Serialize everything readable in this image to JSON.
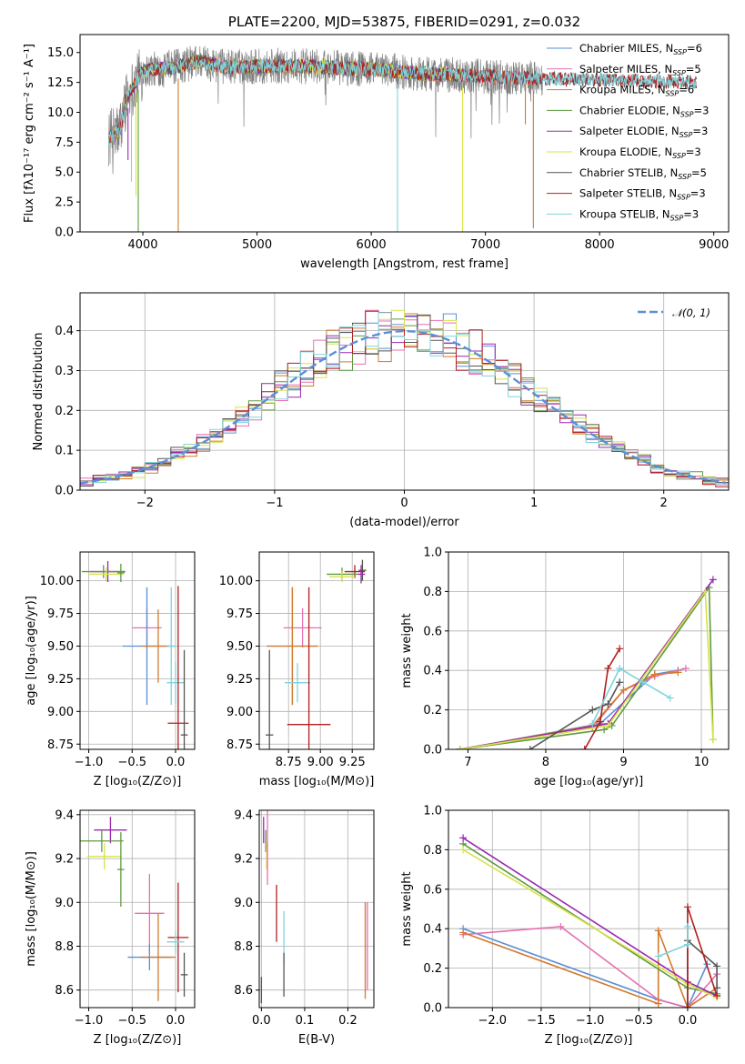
{
  "figure": {
    "title": "PLATE=2200, MJD=53875, FIBERID=0291, z=0.032"
  },
  "colors": {
    "Chabrier MILES": "#5a8fd6",
    "Salpeter MILES": "#e86fb0",
    "Kroupa MILES": "#d27a2a",
    "Chabrier ELODIE": "#5f9a3e",
    "Salpeter ELODIE": "#9b27b0",
    "Kroupa ELODIE": "#d8e24a",
    "Chabrier STELIB": "#555555",
    "Salpeter STELIB": "#b21f1f",
    "Kroupa STELIB": "#7fd3dc"
  },
  "chart_data": [
    {
      "id": "spectrum",
      "type": "line",
      "title": "PLATE=2200, MJD=53875, FIBERID=0291, z=0.032",
      "xlabel": "wavelength [Angstrom, rest frame]",
      "ylabel": "Flux [fλ10⁻¹⁷ erg cm⁻² s⁻¹ A⁻¹]",
      "xlim": [
        3450,
        9130
      ],
      "ylim": [
        0,
        16.5
      ],
      "xticks": [
        4000,
        5000,
        6000,
        7000,
        8000,
        9000
      ],
      "yticks": [
        0.0,
        2.5,
        5.0,
        7.5,
        10.0,
        12.5,
        15.0
      ],
      "grid": false,
      "legend_position": "top-right",
      "legend": [
        {
          "label": "Chabrier MILES, N",
          "sub": "SSP",
          "suffix": "=6",
          "color": "#5a8fd6"
        },
        {
          "label": "Salpeter MILES, N",
          "sub": "SSP",
          "suffix": "=5",
          "color": "#e86fb0"
        },
        {
          "label": "Kroupa MILES, N",
          "sub": "SSP",
          "suffix": "=6",
          "color": "#d27a2a"
        },
        {
          "label": "Chabrier ELODIE, N",
          "sub": "SSP",
          "suffix": "=3",
          "color": "#5f9a3e"
        },
        {
          "label": "Salpeter ELODIE, N",
          "sub": "SSP",
          "suffix": "=3",
          "color": "#9b27b0"
        },
        {
          "label": "Kroupa ELODIE, N",
          "sub": "SSP",
          "suffix": "=3",
          "color": "#d8e24a"
        },
        {
          "label": "Chabrier STELIB, N",
          "sub": "SSP",
          "suffix": "=5",
          "color": "#555555"
        },
        {
          "label": "Salpeter STELIB, N",
          "sub": "SSP",
          "suffix": "=3",
          "color": "#b21f1f"
        },
        {
          "label": "Kroupa STELIB, N",
          "sub": "SSP",
          "suffix": "=3",
          "color": "#7fd3dc"
        }
      ],
      "continuum": [
        [
          3700,
          7.8
        ],
        [
          3800,
          8.5
        ],
        [
          3850,
          11.0
        ],
        [
          3950,
          12.8
        ],
        [
          4000,
          13.4
        ],
        [
          4100,
          13.6
        ],
        [
          4300,
          13.8
        ],
        [
          4500,
          14.3
        ],
        [
          4700,
          13.8
        ],
        [
          4900,
          13.8
        ],
        [
          5200,
          13.9
        ],
        [
          5500,
          13.8
        ],
        [
          6000,
          13.6
        ],
        [
          6500,
          13.2
        ],
        [
          7000,
          13.0
        ],
        [
          7500,
          12.8
        ],
        [
          8000,
          12.7
        ],
        [
          8500,
          12.6
        ],
        [
          8850,
          12.5
        ]
      ],
      "observed": {
        "color": "#808080",
        "wavelength_range": [
          3700,
          7500
        ],
        "noise_amplitude": 1.5
      },
      "model_ranges": {
        "MILES": [
          3700,
          7420
        ],
        "ELODIE": [
          3750,
          6800
        ],
        "STELIB": [
          3700,
          8850
        ]
      },
      "dips": [
        {
          "x": 3940,
          "y": 3.0,
          "color": "#d8e24a"
        },
        {
          "x": 3900,
          "y": 4.2,
          "color": "#7fd3dc"
        },
        {
          "x": 3870,
          "y": 6.0,
          "color": "#9b27b0"
        },
        {
          "x": 3960,
          "y": 0.0,
          "color": "#5f9a3e"
        },
        {
          "x": 4310,
          "y": 0.0,
          "color": "#d27a2a"
        },
        {
          "x": 6230,
          "y": 0.0,
          "color": "#7fd3dc"
        },
        {
          "x": 6800,
          "y": 0.0,
          "color": "#d8e24a"
        },
        {
          "x": 7420,
          "y": 0.3,
          "color": "#d27a2a"
        },
        {
          "x": 7350,
          "y": 9.0,
          "color": "#d27a2a"
        }
      ]
    },
    {
      "id": "residuals",
      "type": "histogram",
      "xlabel": "(data-model)/error",
      "ylabel": "Normed distribution",
      "xlim": [
        -2.5,
        2.5
      ],
      "ylim": [
        0,
        0.495
      ],
      "xticks": [
        -2,
        -1,
        0,
        1,
        2
      ],
      "yticks": [
        0.0,
        0.1,
        0.2,
        0.3,
        0.4
      ],
      "grid": true,
      "bin_width": 0.1,
      "legend_position": "top-right",
      "gaussian": {
        "label": "𝒩(0, 1)",
        "mean": 0,
        "sigma": 1,
        "color": "#5b8fd6"
      }
    },
    {
      "id": "age-vs-Z",
      "type": "errorbar",
      "xlabel": "Z [log₁₀(Z/Z⊙)]",
      "ylabel": "age  [log₁₀(age/yr)]",
      "xlim": [
        -1.1,
        0.22
      ],
      "ylim": [
        8.71,
        10.22
      ],
      "xticks": [
        -1.0,
        -0.5,
        0.0
      ],
      "yticks": [
        8.75,
        9.0,
        9.25,
        9.5,
        9.75,
        10.0
      ],
      "grid": true,
      "points": [
        {
          "x": -0.78,
          "y": 10.07,
          "xerr": 0.2,
          "yerr": 0.08,
          "color": "#9b27b0"
        },
        {
          "x": -0.83,
          "y": 10.07,
          "xerr": 0.25,
          "yerr": 0.05,
          "color": "#5f9a3e"
        },
        {
          "x": -0.8,
          "y": 10.05,
          "xerr": 0.2,
          "yerr": 0.05,
          "color": "#d8e24a"
        },
        {
          "x": -0.63,
          "y": 10.06,
          "xerr": 0.04,
          "yerr": 0.07,
          "color": "#5f9a3e"
        },
        {
          "x": -0.33,
          "y": 9.64,
          "xerr": 0.17,
          "yerr": 0.15,
          "color": "#e86fb0"
        },
        {
          "x": -0.33,
          "y": 9.5,
          "xerr": 0.28,
          "yerr": 0.45,
          "color": "#5a8fd6"
        },
        {
          "x": -0.2,
          "y": 9.5,
          "xerr": 0.2,
          "yerr": 0.28,
          "color": "#d27a2a"
        },
        {
          "x": -0.05,
          "y": 9.5,
          "xerr": 0.05,
          "yerr": 0.45,
          "color": "#7fd3dc"
        },
        {
          "x": 0.0,
          "y": 9.22,
          "xerr": 0.1,
          "yerr": 0.16,
          "color": "#7fd3dc"
        },
        {
          "x": 0.03,
          "y": 8.91,
          "xerr": 0.12,
          "yerr": 1.05,
          "color": "#b21f1f"
        },
        {
          "x": 0.1,
          "y": 8.82,
          "xerr": 0.04,
          "yerr": 0.65,
          "color": "#555555"
        }
      ]
    },
    {
      "id": "age-vs-mass",
      "type": "errorbar",
      "xlabel": "mass [log₁₀(M/M⊙)]",
      "ylabel": "",
      "xlim": [
        8.52,
        9.42
      ],
      "ylim": [
        8.71,
        10.22
      ],
      "xticks": [
        8.75,
        9.0,
        9.25
      ],
      "yticks": [
        8.75,
        9.0,
        9.25,
        9.5,
        9.75,
        10.0
      ],
      "grid": true,
      "points": [
        {
          "x": 9.33,
          "y": 10.08,
          "xerr": 0.03,
          "yerr": 0.08,
          "color": "#555555"
        },
        {
          "x": 9.27,
          "y": 10.07,
          "xerr": 0.08,
          "yerr": 0.05,
          "color": "#b21f1f"
        },
        {
          "x": 9.32,
          "y": 10.05,
          "xerr": 0.03,
          "yerr": 0.07,
          "color": "#9b27b0"
        },
        {
          "x": 9.17,
          "y": 10.05,
          "xerr": 0.12,
          "yerr": 0.05,
          "color": "#5f9a3e"
        },
        {
          "x": 9.17,
          "y": 10.03,
          "xerr": 0.1,
          "yerr": 0.04,
          "color": "#d8e24a"
        },
        {
          "x": 8.86,
          "y": 9.64,
          "xerr": 0.15,
          "yerr": 0.15,
          "color": "#e86fb0"
        },
        {
          "x": 8.78,
          "y": 9.5,
          "xerr": 0.2,
          "yerr": 0.45,
          "color": "#5a8fd6"
        },
        {
          "x": 8.78,
          "y": 9.5,
          "xerr": 0.2,
          "yerr": 0.45,
          "color": "#d27a2a"
        },
        {
          "x": 8.82,
          "y": 9.22,
          "xerr": 0.1,
          "yerr": 0.15,
          "color": "#7fd3dc"
        },
        {
          "x": 8.91,
          "y": 8.9,
          "xerr": 0.17,
          "yerr": 1.05,
          "color": "#b21f1f"
        },
        {
          "x": 8.6,
          "y": 8.82,
          "xerr": 0.03,
          "yerr": 0.65,
          "color": "#555555"
        }
      ]
    },
    {
      "id": "weight-vs-age",
      "type": "line",
      "xlabel": "age  [log₁₀(age/yr)]",
      "ylabel": "mass weight",
      "xlim": [
        6.75,
        10.35
      ],
      "ylim": [
        0,
        1.0
      ],
      "xticks": [
        7,
        8,
        9,
        10
      ],
      "yticks": [
        0.0,
        0.2,
        0.4,
        0.6,
        0.8,
        1.0
      ],
      "grid": true,
      "series": [
        {
          "color": "#5a8fd6",
          "x": [
            6.9,
            8.7,
            9.4,
            9.7
          ],
          "y": [
            0.0,
            0.13,
            0.38,
            0.4
          ]
        },
        {
          "color": "#e86fb0",
          "x": [
            6.9,
            8.6,
            9.0,
            9.4,
            9.8
          ],
          "y": [
            0.0,
            0.11,
            0.3,
            0.37,
            0.41
          ]
        },
        {
          "color": "#d27a2a",
          "x": [
            6.9,
            8.6,
            9.0,
            9.4,
            9.7
          ],
          "y": [
            0.0,
            0.12,
            0.3,
            0.38,
            0.39
          ]
        },
        {
          "color": "#5f9a3e",
          "x": [
            6.9,
            8.75,
            8.85,
            10.1,
            10.15
          ],
          "y": [
            0.0,
            0.1,
            0.12,
            0.82,
            0.05
          ]
        },
        {
          "color": "#9b27b0",
          "x": [
            6.9,
            8.8,
            10.15
          ],
          "y": [
            0.0,
            0.13,
            0.86
          ]
        },
        {
          "color": "#d8e24a",
          "x": [
            6.9,
            8.8,
            10.05,
            10.15
          ],
          "y": [
            0.0,
            0.12,
            0.8,
            0.05
          ]
        },
        {
          "color": "#555555",
          "x": [
            7.8,
            8.6,
            8.8,
            8.95
          ],
          "y": [
            0.0,
            0.2,
            0.23,
            0.34
          ]
        },
        {
          "color": "#b21f1f",
          "x": [
            8.5,
            8.7,
            8.8,
            8.95
          ],
          "y": [
            0.0,
            0.14,
            0.41,
            0.51
          ]
        },
        {
          "color": "#7fd3dc",
          "x": [
            8.6,
            8.95,
            9.25,
            9.6
          ],
          "y": [
            0.13,
            0.41,
            0.34,
            0.26
          ]
        }
      ]
    },
    {
      "id": "mass-vs-Z",
      "type": "errorbar",
      "xlabel": "Z [log₁₀(Z/Z⊙)]",
      "ylabel": "mass [log₁₀(M/M⊙)]",
      "xlim": [
        -1.1,
        0.22
      ],
      "ylim": [
        8.52,
        9.42
      ],
      "xticks": [
        -1.0,
        -0.5,
        0.0
      ],
      "yticks": [
        8.6,
        8.8,
        9.0,
        9.2,
        9.4
      ],
      "grid": true,
      "points": [
        {
          "x": -0.75,
          "y": 9.33,
          "xerr": 0.19,
          "yerr": 0.06,
          "color": "#9b27b0"
        },
        {
          "x": -0.85,
          "y": 9.28,
          "xerr": 0.25,
          "yerr": 0.05,
          "color": "#5f9a3e"
        },
        {
          "x": -0.82,
          "y": 9.21,
          "xerr": 0.2,
          "yerr": 0.06,
          "color": "#d8e24a"
        },
        {
          "x": -0.63,
          "y": 9.15,
          "xerr": 0.04,
          "yerr": 0.17,
          "color": "#5f9a3e"
        },
        {
          "x": -0.3,
          "y": 8.95,
          "xerr": 0.17,
          "yerr": 0.18,
          "color": "#e86fb0"
        },
        {
          "x": -0.3,
          "y": 8.75,
          "xerr": 0.25,
          "yerr": 0.06,
          "color": "#5a8fd6"
        },
        {
          "x": -0.2,
          "y": 8.75,
          "xerr": 0.2,
          "yerr": 0.2,
          "color": "#d27a2a"
        },
        {
          "x": 0.03,
          "y": 8.84,
          "xerr": 0.12,
          "yerr": 0.25,
          "color": "#b21f1f"
        },
        {
          "x": 0.0,
          "y": 8.82,
          "xerr": 0.1,
          "yerr": 0.05,
          "color": "#7fd3dc"
        },
        {
          "x": 0.1,
          "y": 8.67,
          "xerr": 0.04,
          "yerr": 0.1,
          "color": "#555555"
        }
      ]
    },
    {
      "id": "mass-vs-ebv",
      "type": "errorbar",
      "xlabel": "E(B-V)",
      "ylabel": "",
      "xlim": [
        -0.005,
        0.26
      ],
      "ylim": [
        8.52,
        9.42
      ],
      "xticks": [
        0.0,
        0.1,
        0.2
      ],
      "yticks": [
        8.6,
        8.8,
        9.0,
        9.2,
        9.4
      ],
      "grid": true,
      "points": [
        {
          "x": 0.005,
          "y": 9.33,
          "xerr": 0,
          "yerr": 0.06,
          "color": "#9b27b0"
        },
        {
          "x": 0.01,
          "y": 9.28,
          "xerr": 0,
          "yerr": 0.05,
          "color": "#5f9a3e"
        },
        {
          "x": 0.012,
          "y": 9.21,
          "xerr": 0,
          "yerr": 0.06,
          "color": "#d8e24a"
        },
        {
          "x": 0.014,
          "y": 9.25,
          "xerr": 0,
          "yerr": 0.17,
          "color": "#e86fb0"
        },
        {
          "x": 0.035,
          "y": 8.95,
          "xerr": 0,
          "yerr": 0.13,
          "color": "#b21f1f"
        },
        {
          "x": 0.052,
          "y": 8.84,
          "xerr": 0,
          "yerr": 0.12,
          "color": "#7fd3dc"
        },
        {
          "x": 0.052,
          "y": 8.67,
          "xerr": 0,
          "yerr": 0.1,
          "color": "#555555"
        },
        {
          "x": 0.24,
          "y": 8.78,
          "xerr": 0,
          "yerr": 0.22,
          "color": "#d27a2a"
        },
        {
          "x": 0.245,
          "y": 8.8,
          "xerr": 0,
          "yerr": 0.2,
          "color": "#e86fb0"
        },
        {
          "x": 0.0,
          "y": 8.6,
          "xerr": 0,
          "yerr": 0.06,
          "color": "#555555"
        }
      ]
    },
    {
      "id": "weight-vs-Z",
      "type": "line",
      "xlabel": "Z [log₁₀(Z/Z⊙)]",
      "ylabel": "mass weight",
      "xlim": [
        -2.45,
        0.42
      ],
      "ylim": [
        0,
        1.0
      ],
      "xticks": [
        -2.0,
        -1.5,
        -1.0,
        -0.5,
        0.0
      ],
      "yticks": [
        0.0,
        0.2,
        0.4,
        0.6,
        0.8,
        1.0
      ],
      "grid": true,
      "series": [
        {
          "color": "#5a8fd6",
          "x": [
            -2.3,
            -0.3,
            0.0,
            0.2
          ],
          "y": [
            0.4,
            0.04,
            0.0,
            0.22
          ]
        },
        {
          "color": "#e86fb0",
          "x": [
            -2.3,
            -1.3,
            -0.3,
            0.0,
            0.3
          ],
          "y": [
            0.37,
            0.41,
            0.04,
            0.0,
            0.17
          ]
        },
        {
          "color": "#d27a2a",
          "x": [
            -2.3,
            -0.3,
            -0.3,
            0.0,
            0.3
          ],
          "y": [
            0.38,
            0.02,
            0.39,
            0.0,
            0.1
          ]
        },
        {
          "color": "#5f9a3e",
          "x": [
            -2.3,
            0.0,
            0.3
          ],
          "y": [
            0.83,
            0.1,
            0.07
          ]
        },
        {
          "color": "#9b27b0",
          "x": [
            -2.3,
            0.0,
            0.3
          ],
          "y": [
            0.86,
            0.13,
            0.06
          ]
        },
        {
          "color": "#d8e24a",
          "x": [
            -2.3,
            0.0,
            0.3
          ],
          "y": [
            0.8,
            0.12,
            0.05
          ]
        },
        {
          "color": "#555555",
          "x": [
            0.0,
            0.0,
            0.3,
            0.3
          ],
          "y": [
            0.0,
            0.34,
            0.21,
            0.1
          ]
        },
        {
          "color": "#b21f1f",
          "x": [
            0.0,
            0.0,
            0.3
          ],
          "y": [
            0.0,
            0.51,
            0.06
          ]
        },
        {
          "color": "#7fd3dc",
          "x": [
            -0.3,
            0.0,
            0.0
          ],
          "y": [
            0.26,
            0.32,
            0.41
          ]
        }
      ]
    }
  ]
}
